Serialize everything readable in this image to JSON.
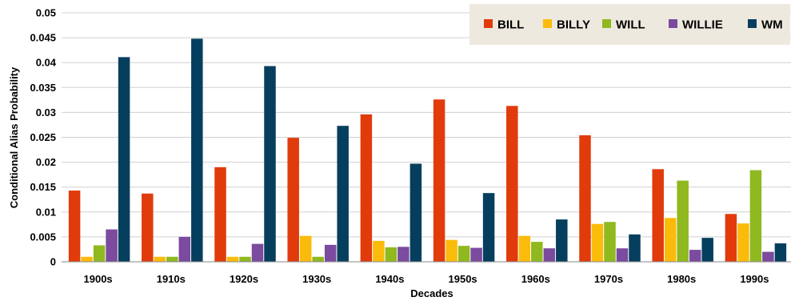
{
  "chart_data": {
    "type": "bar",
    "title": "",
    "xlabel": "Decades",
    "ylabel": "Conditional Alias Probability",
    "ylim": [
      0,
      0.05
    ],
    "yticks": [
      "0",
      "0.005",
      "0.01",
      "0.015",
      "0.02",
      "0.025",
      "0.03",
      "0.035",
      "0.04",
      "0.045",
      "0.05"
    ],
    "grid": true,
    "legend_position": "top-right",
    "categories": [
      "1900s",
      "1910s",
      "1920s",
      "1930s",
      "1940s",
      "1950s",
      "1960s",
      "1970s",
      "1980s",
      "1990s"
    ],
    "series": [
      {
        "name": "BILL",
        "color": "#e13b0c",
        "values": [
          0.0143,
          0.0137,
          0.019,
          0.0249,
          0.0296,
          0.0326,
          0.0313,
          0.0254,
          0.0186,
          0.0096
        ]
      },
      {
        "name": "BILLY",
        "color": "#fbbb0b",
        "values": [
          0.001,
          0.001,
          0.001,
          0.0052,
          0.0042,
          0.0044,
          0.0052,
          0.0076,
          0.0088,
          0.0077
        ]
      },
      {
        "name": "WILL",
        "color": "#90b81f",
        "values": [
          0.0033,
          0.001,
          0.001,
          0.001,
          0.0029,
          0.0032,
          0.004,
          0.008,
          0.0163,
          0.0184
        ]
      },
      {
        "name": "WILLIE",
        "color": "#7a4b9e",
        "values": [
          0.0065,
          0.005,
          0.0036,
          0.0034,
          0.003,
          0.0028,
          0.0027,
          0.0027,
          0.0024,
          0.002
        ]
      },
      {
        "name": "WM",
        "color": "#063f5e",
        "values": [
          0.0411,
          0.0448,
          0.0393,
          0.0273,
          0.0197,
          0.0138,
          0.0085,
          0.0055,
          0.0048,
          0.0037
        ]
      }
    ]
  }
}
